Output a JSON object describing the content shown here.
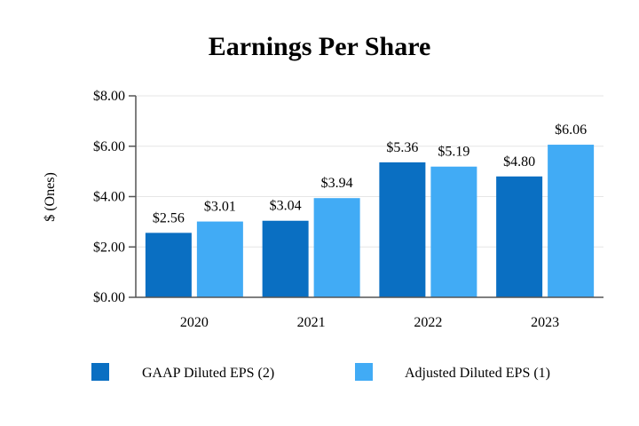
{
  "chart_data": {
    "type": "bar",
    "title": "Earnings Per Share",
    "xlabel": "",
    "ylabel": "$ (Ones)",
    "categories": [
      "2020",
      "2021",
      "2022",
      "2023"
    ],
    "series": [
      {
        "name": "GAAP Diluted EPS (2)",
        "color": "#0a6fc2",
        "values": [
          2.56,
          3.04,
          5.36,
          4.8
        ],
        "labels": [
          "$2.56",
          "$3.04",
          "$5.36",
          "$4.80"
        ]
      },
      {
        "name": "Adjusted Diluted EPS (1)",
        "color": "#41abf5",
        "values": [
          3.01,
          3.94,
          5.19,
          6.06
        ],
        "labels": [
          "$3.01",
          "$3.94",
          "$5.19",
          "$6.06"
        ]
      }
    ],
    "ylim": [
      0,
      8
    ],
    "yticks": [
      0,
      2,
      4,
      6,
      8
    ],
    "ytick_labels": [
      "$0.00",
      "$2.00",
      "$4.00",
      "$6.00",
      "$8.00"
    ],
    "grid": true,
    "legend_position": "bottom"
  }
}
